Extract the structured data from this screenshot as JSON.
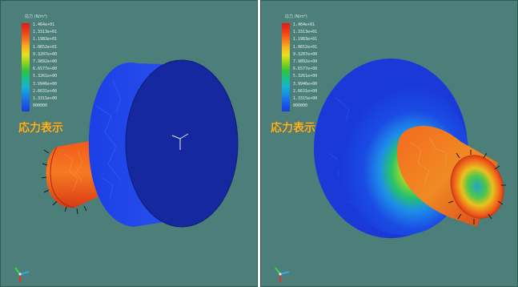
{
  "viewports": [
    {
      "legend": {
        "title": "応力 (N/m²)",
        "values": [
          "1.464e+01",
          "1.3313e+01",
          "1.1983e+01",
          "1.0652e+01",
          "9.3207e+00",
          "7.9892e+00",
          "6.6577e+00",
          "5.3261e+00",
          "3.9946e+00",
          "2.6631e+00",
          "1.3315e+00",
          "000000"
        ]
      },
      "mode_label": "応力表示",
      "legend_colors": [
        "#e21b1b",
        "#1a3ce0"
      ]
    },
    {
      "legend": {
        "title": "応力 (N/m²)",
        "values": [
          "1.464e+01",
          "1.3313e+01",
          "1.1983e+01",
          "1.0652e+01",
          "9.3207e+00",
          "7.9892e+00",
          "6.6577e+00",
          "5.3261e+00",
          "3.9946e+00",
          "2.6631e+00",
          "1.3315e+00",
          "000000"
        ]
      },
      "mode_label": "応力表示",
      "legend_colors": [
        "#e21b1b",
        "#1a3ce0"
      ]
    }
  ],
  "colors": {
    "background": "#4c7f79",
    "label": "#f5b52e",
    "disk": "#1f3fe0",
    "disk_face": "#14279e"
  }
}
